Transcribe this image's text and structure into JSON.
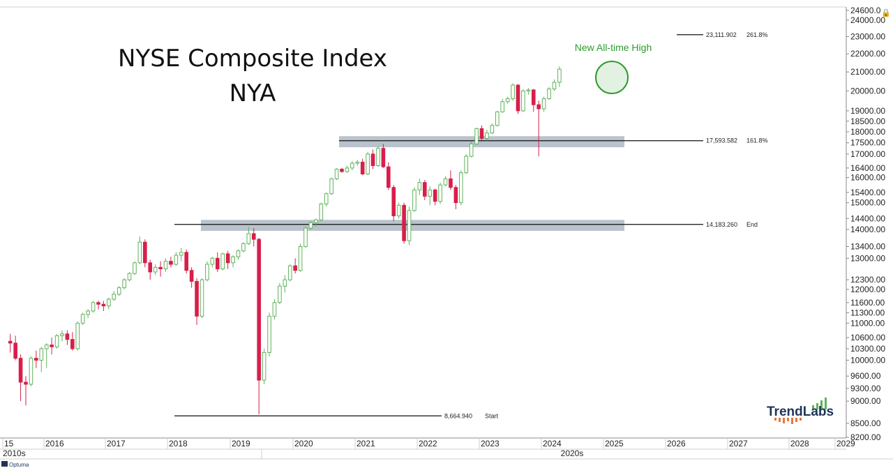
{
  "chart_data": {
    "type": "candlestick",
    "title": "NYSE Composite Index",
    "subtitle": "NYA",
    "y_scale": "log",
    "ylim": [
      8200,
      24600
    ],
    "y_ticks": [
      "24600.0",
      "24000.00",
      "23000.00",
      "22000.00",
      "21000.00",
      "20000.00",
      "19000.00",
      "18500.00",
      "18000.00",
      "17500.00",
      "17000.00",
      "16400.00",
      "16000.00",
      "15400.00",
      "15000.00",
      "14400.00",
      "14000.00",
      "13400.00",
      "13000.00",
      "12300.00",
      "12000.00",
      "11600.00",
      "11300.00",
      "11000.00",
      "10600.00",
      "10300.00",
      "10000.00",
      "9600.00",
      "9300.00",
      "9000.00",
      "8500.00",
      "8200.00"
    ],
    "x_ticks": [
      "15",
      "2016",
      "2017",
      "2018",
      "2019",
      "2020",
      "2021",
      "2022",
      "2023",
      "2024",
      "2025",
      "2026",
      "2027",
      "2028",
      "2029"
    ],
    "decade_labels": [
      "2010s",
      "2020s"
    ],
    "period": "monthly",
    "candles_start": "2015-06",
    "candles": [
      [
        10500,
        10700,
        10200,
        10450
      ],
      [
        10450,
        10650,
        10000,
        10050
      ],
      [
        10050,
        10150,
        9000,
        9450
      ],
      [
        9450,
        9600,
        8900,
        9400
      ],
      [
        9400,
        10100,
        9350,
        10050
      ],
      [
        10050,
        10250,
        9800,
        10000
      ],
      [
        10000,
        10350,
        9700,
        10300
      ],
      [
        10300,
        10450,
        9800,
        10400
      ],
      [
        10400,
        10600,
        10150,
        10350
      ],
      [
        10350,
        10700,
        10300,
        10650
      ],
      [
        10650,
        10800,
        10500,
        10700
      ],
      [
        10700,
        10800,
        10400,
        10550
      ],
      [
        10550,
        10750,
        10250,
        10300
      ],
      [
        10300,
        11050,
        10250,
        11000
      ],
      [
        11000,
        11300,
        10950,
        11250
      ],
      [
        11250,
        11400,
        11150,
        11350
      ],
      [
        11350,
        11650,
        11300,
        11600
      ],
      [
        11600,
        11650,
        11400,
        11550
      ],
      [
        11550,
        11650,
        11350,
        11500
      ],
      [
        11500,
        11750,
        11400,
        11700
      ],
      [
        11700,
        11950,
        11650,
        11850
      ],
      [
        11850,
        12100,
        11800,
        12050
      ],
      [
        12050,
        12350,
        12000,
        12300
      ],
      [
        12300,
        12550,
        12250,
        12500
      ],
      [
        12500,
        12900,
        12450,
        12850
      ],
      [
        12850,
        13750,
        12800,
        13550
      ],
      [
        13550,
        13650,
        12700,
        12850
      ],
      [
        12850,
        12950,
        12300,
        12550
      ],
      [
        12550,
        12800,
        12450,
        12700
      ],
      [
        12700,
        12900,
        12400,
        12650
      ],
      [
        12650,
        13000,
        12550,
        12900
      ],
      [
        12900,
        13050,
        12700,
        12800
      ],
      [
        12800,
        13200,
        12750,
        13100
      ],
      [
        13100,
        13350,
        12900,
        13200
      ],
      [
        13200,
        13300,
        12500,
        12600
      ],
      [
        12600,
        12700,
        12050,
        12250
      ],
      [
        12250,
        12350,
        10950,
        11200
      ],
      [
        11200,
        12350,
        11150,
        12300
      ],
      [
        12300,
        12900,
        12250,
        12800
      ],
      [
        12800,
        13050,
        12700,
        13000
      ],
      [
        13000,
        13200,
        12550,
        12650
      ],
      [
        12650,
        13200,
        12600,
        13150
      ],
      [
        13150,
        13250,
        12650,
        12850
      ],
      [
        12850,
        13100,
        12700,
        13050
      ],
      [
        13050,
        13300,
        12950,
        13250
      ],
      [
        13250,
        13550,
        13200,
        13500
      ],
      [
        13500,
        14100,
        13450,
        13850
      ],
      [
        13850,
        14050,
        13400,
        13650
      ],
      [
        13650,
        13700,
        8700,
        9500
      ],
      [
        9500,
        10300,
        9400,
        10200
      ],
      [
        10200,
        11300,
        10100,
        11200
      ],
      [
        11200,
        11700,
        11100,
        11600
      ],
      [
        11600,
        12200,
        11550,
        12100
      ],
      [
        12100,
        12450,
        11900,
        12300
      ],
      [
        12300,
        12800,
        12250,
        12750
      ],
      [
        12750,
        13000,
        12500,
        12600
      ],
      [
        12600,
        13500,
        12550,
        13400
      ],
      [
        13400,
        14100,
        13350,
        14050
      ],
      [
        14050,
        14300,
        14000,
        14250
      ],
      [
        14250,
        14400,
        14100,
        14350
      ],
      [
        14350,
        15000,
        14300,
        14950
      ],
      [
        14950,
        15400,
        14850,
        15350
      ],
      [
        15350,
        16000,
        15300,
        15950
      ],
      [
        15950,
        16400,
        15900,
        16350
      ],
      [
        16350,
        16400,
        16200,
        16250
      ],
      [
        16250,
        16500,
        16200,
        16400
      ],
      [
        16400,
        16700,
        16300,
        16600
      ],
      [
        16600,
        16750,
        16500,
        16650
      ],
      [
        16650,
        16800,
        16100,
        16150
      ],
      [
        16150,
        17100,
        16100,
        17000
      ],
      [
        17000,
        17200,
        16350,
        16500
      ],
      [
        16500,
        17350,
        16450,
        17250
      ],
      [
        17250,
        17450,
        16400,
        16450
      ],
      [
        16450,
        16650,
        15500,
        15600
      ],
      [
        15600,
        15700,
        14300,
        14500
      ],
      [
        14500,
        15000,
        14400,
        14900
      ],
      [
        14900,
        15000,
        13500,
        13600
      ],
      [
        13600,
        14850,
        13450,
        14700
      ],
      [
        14700,
        15600,
        14650,
        15500
      ],
      [
        15500,
        15950,
        15300,
        15800
      ],
      [
        15800,
        15900,
        15100,
        15250
      ],
      [
        15250,
        15650,
        14900,
        15500
      ],
      [
        15500,
        15550,
        14900,
        15050
      ],
      [
        15050,
        15800,
        14950,
        15700
      ],
      [
        15700,
        16050,
        15650,
        15950
      ],
      [
        15950,
        16300,
        15500,
        15600
      ],
      [
        15600,
        15700,
        14750,
        15000
      ],
      [
        15000,
        16300,
        14900,
        16200
      ],
      [
        16200,
        17000,
        16150,
        16900
      ],
      [
        16900,
        17550,
        16850,
        17450
      ],
      [
        17450,
        18200,
        17400,
        18150
      ],
      [
        18150,
        18300,
        17550,
        17700
      ],
      [
        17700,
        18100,
        17600,
        17950
      ],
      [
        17950,
        18400,
        17900,
        18300
      ],
      [
        18300,
        19000,
        18250,
        18950
      ],
      [
        18950,
        19600,
        18900,
        19450
      ],
      [
        19450,
        19700,
        19350,
        19600
      ],
      [
        19600,
        20400,
        19500,
        20300
      ],
      [
        20300,
        20350,
        18850,
        19000
      ],
      [
        19000,
        20100,
        18950,
        20000
      ],
      [
        20000,
        20150,
        19800,
        20050
      ],
      [
        20050,
        20100,
        18950,
        19300
      ],
      [
        19300,
        19500,
        16900,
        19100
      ],
      [
        19100,
        19700,
        18950,
        19600
      ],
      [
        19600,
        20200,
        19550,
        20100
      ],
      [
        20100,
        20600,
        20000,
        20450
      ],
      [
        20450,
        21300,
        20200,
        21150
      ]
    ],
    "levels": [
      {
        "value": "23,111.902",
        "label": "261.8%",
        "y": 23111.902
      },
      {
        "value": "17,593.582",
        "label": "161.8%",
        "y": 17593.582
      },
      {
        "value": "14,183.260",
        "label": "End",
        "y": 14183.26
      },
      {
        "value": "8,664.940",
        "label": "Start",
        "y": 8664.94
      }
    ],
    "zones": [
      {
        "from": 17300,
        "to": 17800
      },
      {
        "from": 13950,
        "to": 14350
      }
    ],
    "annotations": [
      {
        "text": "New All-time High"
      }
    ]
  },
  "brand": {
    "name": "TrendLabs",
    "footer": "Optuma"
  },
  "colors": {
    "up": "#5fb35a",
    "down": "#d81e4a",
    "zone": "#b3bcc6",
    "ann": "#2e9a2e"
  }
}
